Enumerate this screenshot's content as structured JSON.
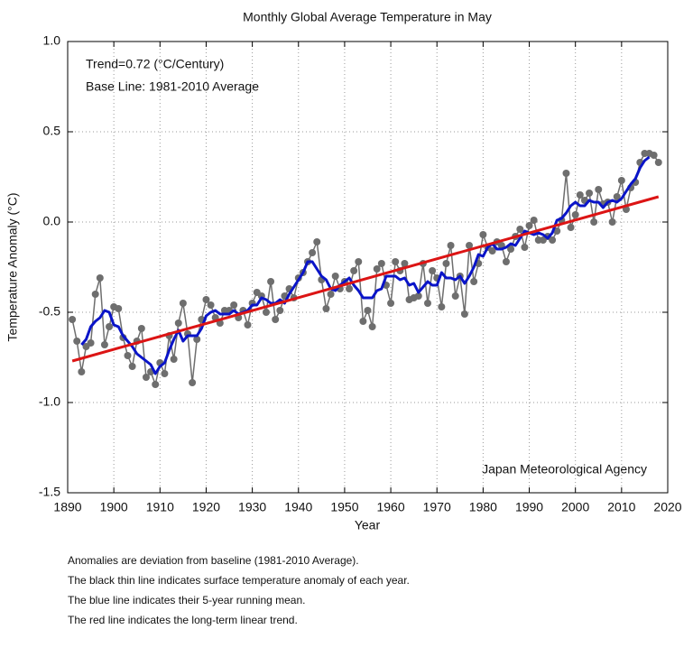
{
  "chart_data": {
    "type": "line",
    "title": "Monthly Global Average Temperature in May",
    "annotations": [
      "Trend=0.72 (°C/Century)",
      "Base Line: 1981-2010 Average",
      "Japan Meteorological Agency"
    ],
    "xlabel": "Year",
    "ylabel": "Temperature Anomaly (°C)",
    "notes": [
      "Anomalies are deviation from baseline (1981-2010 Average).",
      "The black thin line indicates surface temperature anomaly of each year.",
      "The blue line indicates their 5-year running mean.",
      "The red line indicates the long-term linear trend."
    ],
    "x": [
      1891,
      1892,
      1893,
      1894,
      1895,
      1896,
      1897,
      1898,
      1899,
      1900,
      1901,
      1902,
      1903,
      1904,
      1905,
      1906,
      1907,
      1908,
      1909,
      1910,
      1911,
      1912,
      1913,
      1914,
      1915,
      1916,
      1917,
      1918,
      1919,
      1920,
      1921,
      1922,
      1923,
      1924,
      1925,
      1926,
      1927,
      1928,
      1929,
      1930,
      1931,
      1932,
      1933,
      1934,
      1935,
      1936,
      1937,
      1938,
      1939,
      1940,
      1941,
      1942,
      1943,
      1944,
      1945,
      1946,
      1947,
      1948,
      1949,
      1950,
      1951,
      1952,
      1953,
      1954,
      1955,
      1956,
      1957,
      1958,
      1959,
      1960,
      1961,
      1962,
      1963,
      1964,
      1965,
      1966,
      1967,
      1968,
      1969,
      1970,
      1971,
      1972,
      1973,
      1974,
      1975,
      1976,
      1977,
      1978,
      1979,
      1980,
      1981,
      1982,
      1983,
      1984,
      1985,
      1986,
      1987,
      1988,
      1989,
      1990,
      1991,
      1992,
      1993,
      1994,
      1995,
      1996,
      1997,
      1998,
      1999,
      2000,
      2001,
      2002,
      2003,
      2004,
      2005,
      2006,
      2007,
      2008,
      2009,
      2010,
      2011,
      2012,
      2013,
      2014,
      2015,
      2016,
      2017,
      2018
    ],
    "series": [
      {
        "color": "#6e6e6e",
        "markers": true,
        "width": 1.5,
        "values": [
          -0.54,
          -0.66,
          -0.83,
          -0.69,
          -0.67,
          -0.4,
          -0.31,
          -0.68,
          -0.58,
          -0.47,
          -0.48,
          -0.64,
          -0.74,
          -0.8,
          -0.66,
          -0.59,
          -0.86,
          -0.83,
          -0.9,
          -0.78,
          -0.84,
          -0.63,
          -0.76,
          -0.56,
          -0.45,
          -0.62,
          -0.89,
          -0.65,
          -0.54,
          -0.43,
          -0.46,
          -0.53,
          -0.56,
          -0.49,
          -0.49,
          -0.46,
          -0.53,
          -0.49,
          -0.57,
          -0.45,
          -0.39,
          -0.41,
          -0.5,
          -0.33,
          -0.54,
          -0.49,
          -0.41,
          -0.37,
          -0.42,
          -0.31,
          -0.28,
          -0.22,
          -0.17,
          -0.11,
          -0.32,
          -0.48,
          -0.4,
          -0.3,
          -0.37,
          -0.33,
          -0.37,
          -0.27,
          -0.22,
          -0.55,
          -0.49,
          -0.58,
          -0.26,
          -0.23,
          -0.35,
          -0.45,
          -0.22,
          -0.27,
          -0.23,
          -0.43,
          -0.42,
          -0.41,
          -0.23,
          -0.45,
          -0.27,
          -0.31,
          -0.47,
          -0.23,
          -0.13,
          -0.41,
          -0.3,
          -0.51,
          -0.13,
          -0.33,
          -0.23,
          -0.07,
          -0.14,
          -0.16,
          -0.11,
          -0.13,
          -0.22,
          -0.15,
          -0.08,
          -0.04,
          -0.14,
          -0.02,
          0.01,
          -0.1,
          -0.1,
          -0.08,
          -0.1,
          -0.05,
          0.01,
          0.27,
          -0.03,
          0.04,
          0.15,
          0.12,
          0.16,
          0.0,
          0.18,
          0.1,
          0.11,
          0.0,
          0.14,
          0.23,
          0.07,
          0.19,
          0.22,
          0.33,
          0.38,
          0.38,
          0.37,
          0.33
        ]
      },
      {
        "color": "#0a14c8",
        "markers": false,
        "width": 3,
        "values": [
          null,
          null,
          -0.68,
          -0.65,
          -0.58,
          -0.55,
          -0.53,
          -0.49,
          -0.5,
          -0.57,
          -0.58,
          -0.63,
          -0.66,
          -0.69,
          -0.73,
          -0.75,
          -0.77,
          -0.79,
          -0.84,
          -0.8,
          -0.78,
          -0.71,
          -0.65,
          -0.6,
          -0.66,
          -0.63,
          -0.63,
          -0.63,
          -0.59,
          -0.52,
          -0.5,
          -0.49,
          -0.51,
          -0.51,
          -0.51,
          -0.49,
          -0.51,
          -0.5,
          -0.49,
          -0.46,
          -0.46,
          -0.42,
          -0.43,
          -0.45,
          -0.45,
          -0.43,
          -0.45,
          -0.4,
          -0.36,
          -0.32,
          -0.28,
          -0.22,
          -0.22,
          -0.26,
          -0.3,
          -0.32,
          -0.37,
          -0.38,
          -0.35,
          -0.33,
          -0.31,
          -0.35,
          -0.38,
          -0.42,
          -0.42,
          -0.42,
          -0.38,
          -0.37,
          -0.3,
          -0.3,
          -0.3,
          -0.32,
          -0.31,
          -0.35,
          -0.34,
          -0.39,
          -0.36,
          -0.33,
          -0.35,
          -0.35,
          -0.28,
          -0.31,
          -0.31,
          -0.32,
          -0.3,
          -0.34,
          -0.3,
          -0.25,
          -0.18,
          -0.19,
          -0.14,
          -0.12,
          -0.15,
          -0.15,
          -0.14,
          -0.12,
          -0.13,
          -0.09,
          -0.05,
          -0.06,
          -0.07,
          -0.06,
          -0.07,
          -0.09,
          -0.06,
          0.01,
          0.02,
          0.05,
          0.09,
          0.11,
          0.09,
          0.09,
          0.12,
          0.11,
          0.11,
          0.08,
          0.11,
          0.12,
          0.11,
          0.13,
          0.17,
          0.21,
          0.24,
          0.3,
          0.34,
          0.36,
          null,
          null
        ]
      },
      {
        "color": "#dc1414",
        "markers": false,
        "width": 3,
        "x": [
          1891,
          2018
        ],
        "values": [
          -0.77,
          0.14
        ]
      }
    ],
    "xlim": [
      1890,
      2020
    ],
    "xticks": [
      1890,
      1900,
      1910,
      1920,
      1930,
      1940,
      1950,
      1960,
      1970,
      1980,
      1990,
      2000,
      2010,
      2020
    ],
    "ylim": [
      -1.5,
      1.0
    ],
    "yticks": [
      {
        "value": 1.0,
        "label": "1.0"
      },
      0.5,
      {
        "value": 0.0,
        "label": "0.0"
      },
      -0.5,
      {
        "value": -1.0,
        "label": "-1.0"
      },
      -1.5
    ],
    "grid": true
  }
}
